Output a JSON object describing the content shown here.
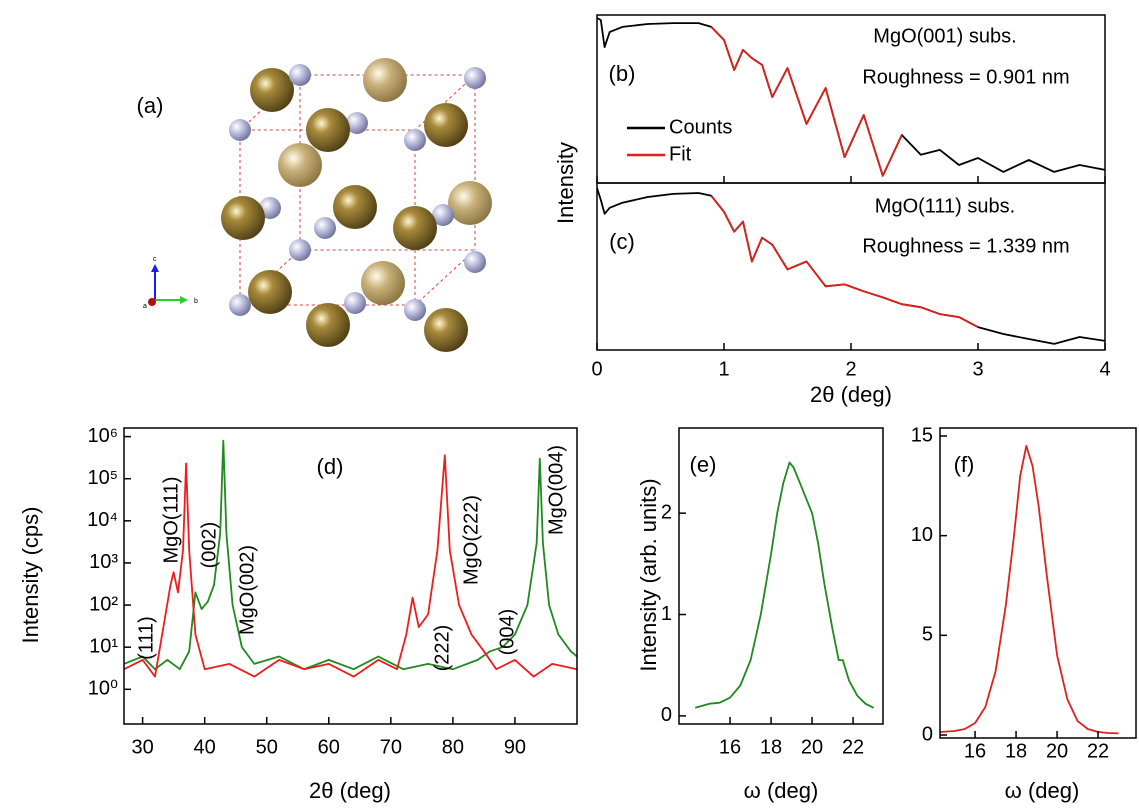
{
  "panel_a": {
    "label": "(a)",
    "axis_labels": [
      "c",
      "b",
      "a"
    ]
  },
  "chart_data": [
    {
      "type": "line",
      "xlabel": "2θ (deg)",
      "ylabel": "Intensity",
      "log_y": true,
      "xlim": [
        0,
        4
      ],
      "xticks": [
        0,
        1,
        2,
        3,
        4
      ],
      "ylim": [
        1e-07,
        1
      ],
      "x": [
        0,
        0.03,
        0.06,
        0.1,
        0.2,
        0.4,
        0.6,
        0.8,
        0.9,
        1.0,
        1.08,
        1.15,
        1.22,
        1.3,
        1.38,
        1.5,
        1.65,
        1.8,
        1.95,
        2.1,
        2.25,
        2.4,
        2.55,
        2.7,
        2.85,
        3.0,
        3.2,
        3.4,
        3.6,
        3.8,
        4.0
      ],
      "panels": [
        {
          "label": "(b)",
          "annotations": [
            "MgO(001) subs.",
            "Roughness = 0.901 nm"
          ],
          "series": [
            {
              "name": "Counts",
              "color": "#000000",
              "values": [
                0.75,
                0.62,
                0.046,
                0.196,
                0.32,
                0.42,
                0.46,
                0.46,
                0.32,
                0.091,
                0.0051,
                0.035,
                0.016,
                0.0083,
                0.00038,
                0.0062,
                2.9e-05,
                0.00091,
                1.2e-06,
                6.8e-05,
                2e-07,
                1e-05,
                1.5e-06,
                2.4e-06,
                5.6e-07,
                1.1e-06,
                2.9e-07,
                9.1e-07,
                2.9e-07,
                5.6e-07,
                3.5e-07
              ]
            },
            {
              "name": "Fit",
              "color": "#e0201b",
              "values": [
                null,
                null,
                null,
                null,
                null,
                null,
                null,
                null,
                0.32,
                0.091,
                0.0051,
                0.035,
                0.016,
                0.0083,
                0.00038,
                0.0062,
                2.9e-05,
                0.00091,
                1.2e-06,
                6.8e-05,
                2e-07,
                1e-05,
                null,
                null,
                null,
                null,
                null,
                null,
                null,
                null,
                null
              ]
            }
          ]
        },
        {
          "label": "(c)",
          "annotations": [
            "MgO(111) subs.",
            "Roughness = 1.339 nm"
          ],
          "series": [
            {
              "color": "#000000",
              "values": [
                0.62,
                0.196,
                0.051,
                0.091,
                0.15,
                0.26,
                0.35,
                0.38,
                0.29,
                0.062,
                0.0091,
                0.024,
                0.00051,
                0.0051,
                0.0026,
                0.00024,
                0.00051,
                4.7e-05,
                5.6e-05,
                2.9e-05,
                1.6e-05,
                8.3e-06,
                6.2e-06,
                3.2e-06,
                2.4e-06,
                9.1e-07,
                4.7e-07,
                2.9e-07,
                1.8e-07,
                3.5e-07,
                2.4e-07
              ]
            },
            {
              "color": "#e0201b",
              "values": [
                null,
                null,
                null,
                null,
                null,
                null,
                null,
                null,
                0.29,
                0.062,
                0.0091,
                0.024,
                0.00051,
                0.0051,
                0.0026,
                0.00024,
                0.00051,
                4.7e-05,
                5.6e-05,
                2.9e-05,
                1.6e-05,
                8.3e-06,
                6.2e-06,
                3.2e-06,
                2.4e-06,
                9.1e-07,
                null,
                null,
                null,
                null,
                null
              ]
            }
          ]
        }
      ]
    },
    {
      "type": "line",
      "xlabel": "2θ (deg)",
      "ylabel": "Intensity (cps)",
      "log_y": true,
      "xlim": [
        27,
        100
      ],
      "xticks": [
        30,
        40,
        50,
        60,
        70,
        80,
        90
      ],
      "ylim": [
        0.15,
        1600000
      ],
      "yticks": [
        {
          "value": 1,
          "label": "10⁰"
        },
        {
          "value": 10,
          "label": "10¹"
        },
        {
          "value": 100,
          "label": "10²"
        },
        {
          "value": 1000,
          "label": "10³"
        },
        {
          "value": 10000,
          "label": "10⁴"
        },
        {
          "value": 100000,
          "label": "10⁵"
        },
        {
          "value": 1000000,
          "label": "10⁶"
        }
      ],
      "panels": [
        {
          "label": "(d)",
          "annotations": [
            "(111)",
            "MgO(111)",
            "(002)",
            "MgO(002)",
            "(222)",
            "MgO(222)",
            "(004)",
            "MgO(004)"
          ],
          "series": [
            {
              "color": "#1f8a1f",
              "x": [
                27,
                30,
                32,
                34,
                36,
                37.5,
                38.5,
                39.5,
                40.5,
                41.5,
                42.5,
                43,
                43.5,
                44.5,
                46,
                48,
                52,
                56,
                60,
                64,
                68,
                72,
                76,
                80,
                84,
                86,
                88,
                90,
                92,
                93.5,
                94,
                94.5,
                95.5,
                97,
                99,
                100
              ],
              "values": [
                4,
                6,
                3,
                5,
                3,
                8,
                200,
                80,
                120,
                300,
                5000,
                800000,
                5000,
                100,
                10,
                4,
                6,
                3,
                5,
                3,
                6,
                3,
                4,
                3,
                5,
                8,
                10,
                20,
                100,
                3000,
                300000,
                3000,
                100,
                20,
                8,
                6
              ]
            },
            {
              "color": "#f01c1c",
              "x": [
                27,
                30,
                32,
                33.5,
                34.5,
                35,
                35.7,
                36.5,
                37,
                37.5,
                38.5,
                40,
                44,
                48,
                52,
                56,
                60,
                64,
                68,
                71,
                72.5,
                73.5,
                74.5,
                76,
                77.5,
                78.7,
                79.5,
                81,
                83,
                85,
                87,
                90,
                93,
                96,
                100
              ],
              "values": [
                3,
                5,
                2,
                40,
                300,
                600,
                200,
                2000,
                230000,
                2000,
                20,
                3,
                4,
                2,
                5,
                3,
                4,
                2,
                5,
                3,
                20,
                150,
                30,
                60,
                2000,
                360000,
                2000,
                100,
                20,
                8,
                3,
                5,
                2,
                4,
                3
              ]
            }
          ]
        }
      ]
    },
    {
      "type": "line",
      "xlabel": "ω (deg)",
      "ylabel": "Intensity (arb. units)",
      "xlim": [
        13.51,
        23.46
      ],
      "xticks": [
        16,
        18,
        20,
        22
      ],
      "ylim": [
        -0.08,
        2.84
      ],
      "yticks": [
        0,
        1,
        2
      ],
      "x": [
        14.3,
        15,
        15.5,
        16,
        16.5,
        17,
        17.5,
        18,
        18.3,
        18.6,
        18.9,
        19.1,
        19.4,
        19.7,
        20,
        20.3,
        20.6,
        21,
        21.3,
        21.5,
        21.8,
        22.2,
        22.6,
        23
      ],
      "panels": [
        {
          "label": "(e)",
          "series": [
            {
              "color": "#1f8a1f",
              "values": [
                0.08,
                0.12,
                0.13,
                0.18,
                0.3,
                0.55,
                1.0,
                1.6,
                2.0,
                2.3,
                2.5,
                2.45,
                2.3,
                2.15,
                2.0,
                1.7,
                1.3,
                0.85,
                0.55,
                0.55,
                0.35,
                0.2,
                0.12,
                0.08
              ]
            }
          ]
        }
      ]
    },
    {
      "type": "line",
      "xlabel": "ω (deg)",
      "xlim": [
        14.29,
        23.85
      ],
      "xticks": [
        16,
        18,
        20,
        22
      ],
      "ylim": [
        -0.15,
        15.4
      ],
      "yticks": [
        0,
        5,
        10,
        15
      ],
      "x": [
        14.3,
        15,
        15.5,
        16,
        16.5,
        17,
        17.5,
        17.9,
        18.2,
        18.5,
        18.8,
        19.1,
        19.5,
        20,
        20.5,
        21,
        21.5,
        22,
        22.5,
        23
      ],
      "panels": [
        {
          "label": "(f)",
          "series": [
            {
              "color": "#e0201b",
              "values": [
                0.15,
                0.2,
                0.3,
                0.6,
                1.4,
                3.2,
                6.5,
                10,
                13,
                14.5,
                13.5,
                11.5,
                8,
                4,
                1.8,
                0.7,
                0.3,
                0.15,
                0.1,
                0.08
              ]
            }
          ]
        }
      ]
    }
  ]
}
